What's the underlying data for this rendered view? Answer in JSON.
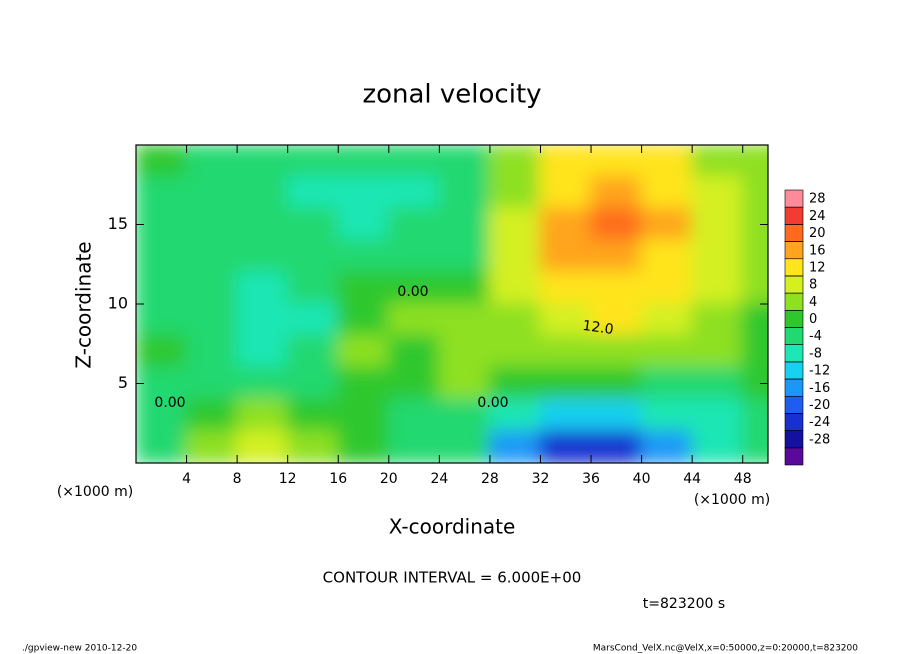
{
  "chart_data": {
    "type": "contour",
    "title": "zonal velocity",
    "xlabel": "X-coordinate",
    "ylabel": "Z-coordinate",
    "x_unit": "(×1000 m)",
    "contour_interval": "CONTOUR INTERVAL = 6.000E+00",
    "time_label": "t=823200 s",
    "footer_left": "./gpview-new  2010-12-20",
    "footer_right": "MarsCond_VelX.nc@VelX,x=0:50000,z=0:20000,t=823200",
    "contour_labels": [
      "0.00",
      "0.00",
      "0.00",
      "12.0"
    ],
    "xlim": [
      0,
      50
    ],
    "ylim": [
      0,
      20
    ],
    "xticks": [
      4,
      8,
      12,
      16,
      20,
      24,
      28,
      32,
      36,
      40,
      44,
      48
    ],
    "yticks": [
      5,
      10,
      15
    ],
    "x": [
      2,
      6,
      10,
      14,
      18,
      22,
      26,
      30,
      34,
      38,
      42,
      46,
      50
    ],
    "y": [
      19,
      17,
      15,
      13,
      11,
      9,
      7,
      5,
      3,
      1
    ],
    "z": [
      [
        0,
        -2,
        -3,
        -4,
        -4,
        -4,
        -2,
        4,
        12,
        14,
        12,
        6,
        4
      ],
      [
        -2,
        -3,
        -4,
        -6,
        -5,
        -5,
        -2,
        6,
        14,
        18,
        14,
        8,
        4
      ],
      [
        -2,
        -3,
        -3,
        -4,
        -5,
        -4,
        -1,
        8,
        16,
        20,
        16,
        8,
        4
      ],
      [
        -1,
        -3,
        -4,
        -3,
        -3,
        -3,
        -1,
        8,
        16,
        18,
        14,
        8,
        4
      ],
      [
        -2,
        -4,
        -6,
        -4,
        0,
        0,
        2,
        8,
        14,
        14,
        12,
        8,
        4
      ],
      [
        -2,
        -4,
        -8,
        -6,
        2,
        4,
        4,
        6,
        10,
        12,
        10,
        6,
        2
      ],
      [
        0,
        -2,
        -6,
        -4,
        4,
        2,
        6,
        4,
        6,
        6,
        6,
        4,
        2
      ],
      [
        -2,
        -2,
        -2,
        -2,
        0,
        2,
        4,
        2,
        2,
        0,
        -2,
        -2,
        0
      ],
      [
        -2,
        2,
        4,
        2,
        0,
        -4,
        -2,
        -8,
        -12,
        -10,
        -8,
        -6,
        -2
      ],
      [
        -4,
        4,
        8,
        6,
        2,
        -2,
        -2,
        -16,
        -24,
        -22,
        -14,
        -6,
        -2
      ]
    ],
    "colorbar": {
      "levels": [
        -28,
        -24,
        -20,
        -16,
        -12,
        -8,
        -4,
        0,
        4,
        8,
        12,
        16,
        20,
        24,
        28
      ],
      "colors": [
        "#5a0a9a",
        "#1410a0",
        "#1830d0",
        "#1f5cf0",
        "#1a98f8",
        "#18d0f0",
        "#1ee6b4",
        "#22d870",
        "#2ec82e",
        "#8ee020",
        "#d4f020",
        "#ffe41e",
        "#ffa41e",
        "#ff6a1e",
        "#f03c32",
        "#ff8a9a"
      ]
    }
  }
}
